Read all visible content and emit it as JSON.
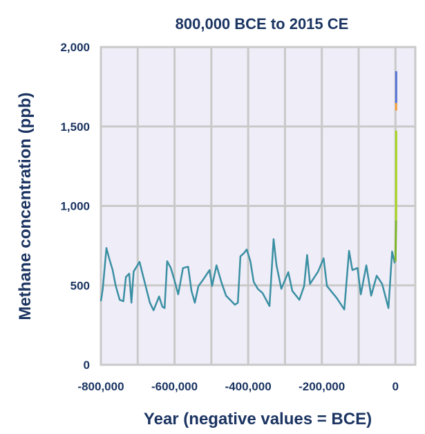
{
  "chart_data": {
    "type": "line",
    "title": "800,000 BCE to 2015 CE",
    "xlabel": "Year (negative values = BCE)",
    "ylabel": "Methane concentration (ppb)",
    "xlim": [
      -800000,
      54000
    ],
    "ylim": [
      0,
      2000
    ],
    "grid": true,
    "x_ticks": [
      -800000,
      -600000,
      -400000,
      -200000,
      0
    ],
    "x_tick_labels": [
      "-800,000",
      "-600,000",
      "-400,000",
      "-200,000",
      "0"
    ],
    "x_grid_step": 100000,
    "y_ticks": [
      0,
      500,
      1000,
      1500,
      2000
    ],
    "y_tick_labels": [
      "0",
      "500",
      "1,000",
      "1,500",
      "2,000"
    ],
    "y_grid_step": 500,
    "background_color": "#efedf7",
    "grid_color": "#c9c9c9",
    "series": [
      {
        "color": "#3a8fa3",
        "x": [
          -800000,
          -795000,
          -785000,
          -778000,
          -768000,
          -760000,
          -749000,
          -739000,
          -732000,
          -723000,
          -717000,
          -711000,
          -695000,
          -686000,
          -667000,
          -657000,
          -642000,
          -633000,
          -627000,
          -620000,
          -610000,
          -599000,
          -590000,
          -577000,
          -563000,
          -554000,
          -545000,
          -535000,
          -524000,
          -505000,
          -498000,
          -486000,
          -473000,
          -460000,
          -449000,
          -436000,
          -428000,
          -421000,
          -411000,
          -404000,
          -394000,
          -385000,
          -374000,
          -361000,
          -342000,
          -331000,
          -323000,
          -310000,
          -291000,
          -280000,
          -261000,
          -248000,
          -240000,
          -232000,
          -210000,
          -195000,
          -186000,
          -160000,
          -139000,
          -126000,
          -117000,
          -103000,
          -94000,
          -79000,
          -66000,
          -51000,
          -36000,
          -19000,
          -9000,
          -2000
        ],
        "values": [
          400,
          478,
          735,
          674,
          596,
          500,
          409,
          400,
          552,
          574,
          391,
          587,
          648,
          565,
          391,
          343,
          430,
          365,
          357,
          652,
          609,
          522,
          443,
          609,
          617,
          465,
          391,
          496,
          530,
          596,
          496,
          626,
          522,
          435,
          409,
          378,
          391,
          683,
          704,
          726,
          652,
          522,
          478,
          452,
          370,
          791,
          626,
          478,
          583,
          465,
          409,
          496,
          691,
          509,
          587,
          670,
          496,
          422,
          348,
          717,
          596,
          609,
          443,
          626,
          435,
          561,
          509,
          357,
          713,
          639
        ]
      },
      {
        "color": "#7fb52b",
        "x": [
          1,
          1900
        ],
        "values": [
          650,
          909
        ]
      },
      {
        "color": "#a6d41e",
        "x": [
          1900,
          1985
        ],
        "values": [
          909,
          1474
        ]
      },
      {
        "color": "#f5a03a",
        "x": [
          1984,
          1986
        ],
        "values": [
          1600,
          1648
        ]
      },
      {
        "color": "#5570d8",
        "x": [
          1986,
          2015
        ],
        "values": [
          1648,
          1848
        ]
      }
    ]
  }
}
